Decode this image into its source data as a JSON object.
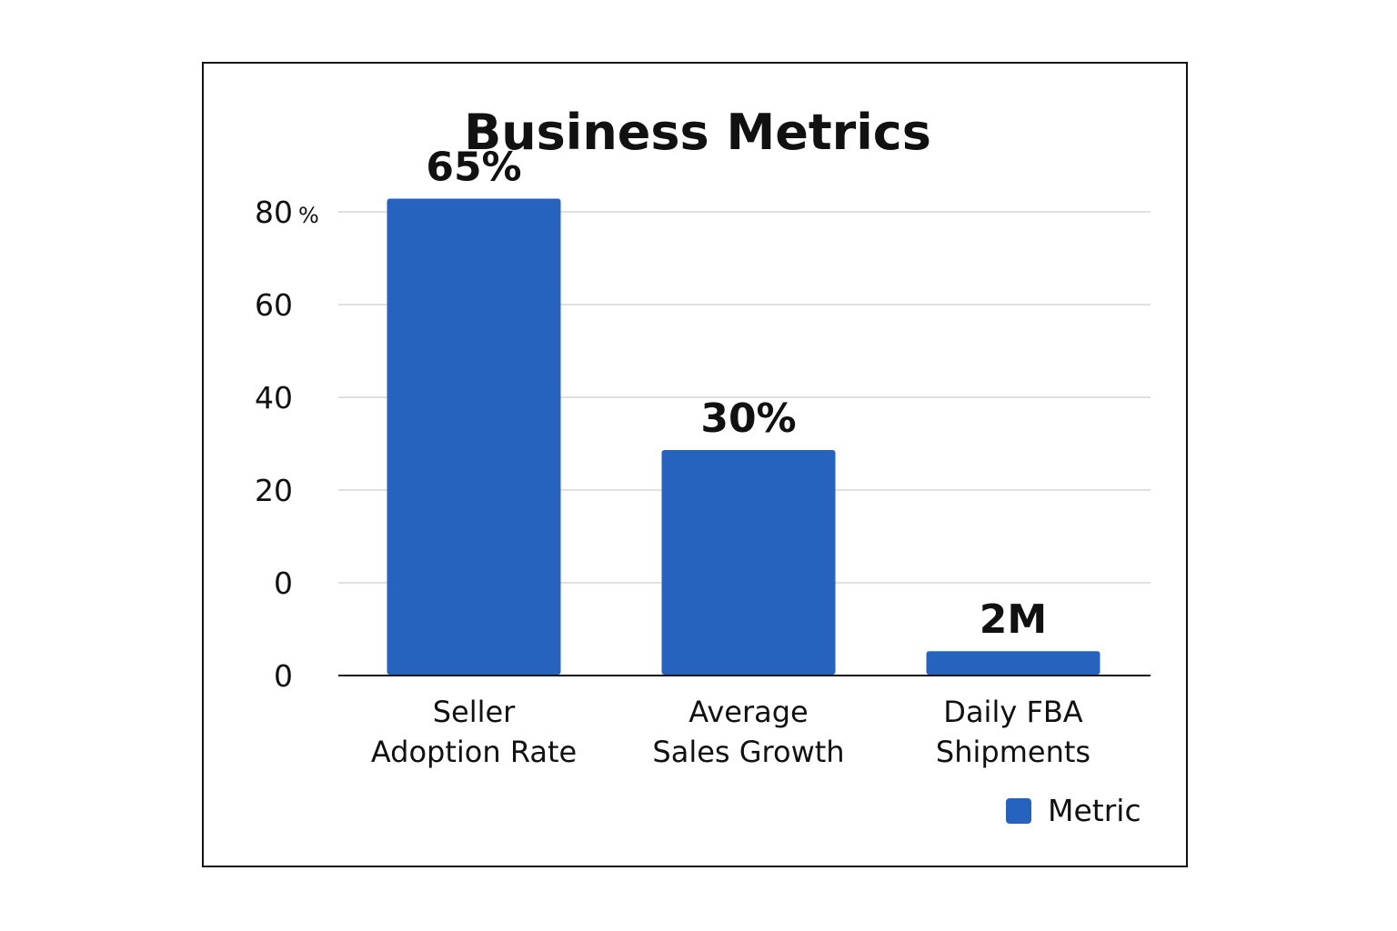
{
  "chart_data": {
    "type": "bar",
    "title": "Business Metrics",
    "xlabel": "",
    "ylabel": "",
    "y_unit": "%",
    "y_tick_labels": [
      "80",
      "60",
      "40",
      "20",
      "0",
      "0"
    ],
    "ylim": [
      0,
      80
    ],
    "grid": true,
    "legend_position": "bottom-right",
    "categories": [
      "Seller Adoption Rate",
      "Average Sales Growth",
      "Daily FBA Shipments"
    ],
    "category_lines": [
      [
        "Seller",
        "Adoption Rate"
      ],
      [
        "Average",
        "Sales Growth"
      ],
      [
        "Daily FBA",
        "Shipments"
      ]
    ],
    "series": [
      {
        "name": "Metric",
        "color": "#2563be",
        "values": [
          65,
          30,
          2
        ],
        "value_labels": [
          "65%",
          "30%",
          "2M"
        ]
      }
    ]
  }
}
